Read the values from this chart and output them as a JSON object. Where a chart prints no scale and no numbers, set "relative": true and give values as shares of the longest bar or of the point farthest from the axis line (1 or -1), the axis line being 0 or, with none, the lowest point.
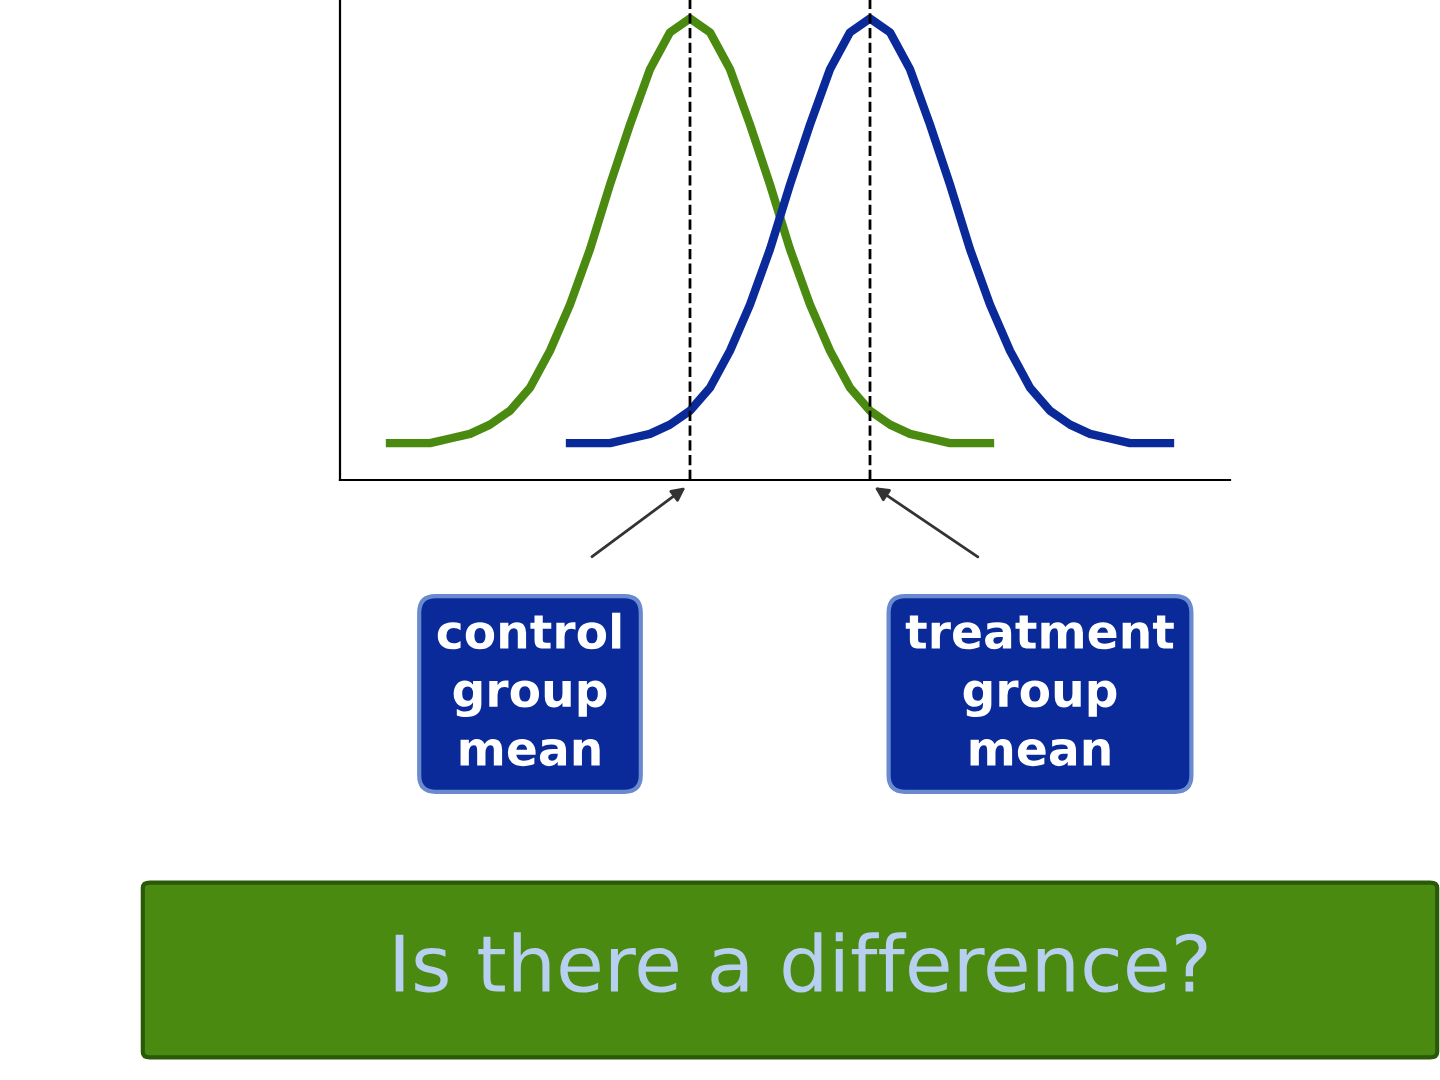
{
  "chart_data": {
    "type": "line",
    "relative": true,
    "title": "Is there a difference?",
    "categories": [
      null,
      null,
      null,
      null,
      null,
      null,
      null,
      null,
      null,
      null,
      null,
      null,
      null,
      null,
      null,
      null,
      null,
      null,
      null,
      null,
      null,
      null,
      null,
      null,
      null,
      null,
      null,
      null,
      null,
      null,
      null,
      null,
      null,
      null,
      null,
      null,
      null,
      null,
      null,
      null,
      null
    ],
    "marker": "none",
    "line_style": "solid",
    "series": [
      {
        "color": "#4a8a10",
        "values": [
          0.08,
          0.08,
          0.08,
          0.09,
          0.1,
          0.12,
          0.15,
          0.2,
          0.28,
          0.38,
          0.5,
          0.64,
          0.77,
          0.89,
          0.97,
          1.0,
          0.97,
          0.89,
          0.77,
          0.64,
          0.5,
          0.38,
          0.28,
          0.2,
          0.15,
          0.12,
          0.1,
          0.09,
          0.08,
          0.08,
          0.08,
          null,
          null,
          null,
          null,
          null,
          null,
          null,
          null,
          null,
          null
        ]
      },
      {
        "color": "#0a2a9a",
        "values": [
          null,
          null,
          null,
          null,
          null,
          null,
          null,
          null,
          null,
          0.08,
          0.08,
          0.08,
          0.09,
          0.1,
          0.12,
          0.15,
          0.2,
          0.28,
          0.38,
          0.5,
          0.64,
          0.77,
          0.89,
          0.97,
          1.0,
          0.97,
          0.89,
          0.77,
          0.64,
          0.5,
          0.38,
          0.28,
          0.2,
          0.15,
          0.12,
          0.1,
          0.09,
          0.08,
          0.08,
          0.08,
          null
        ]
      }
    ],
    "ref_lines": [
      {
        "axis": "x",
        "color": "#000000",
        "line_style": "dashed"
      },
      {
        "axis": "x",
        "color": "#000000",
        "line_style": "dashed"
      }
    ],
    "annotations": [
      "control\ngroup\nmean",
      "treatment\ngroup\nmean"
    ]
  }
}
